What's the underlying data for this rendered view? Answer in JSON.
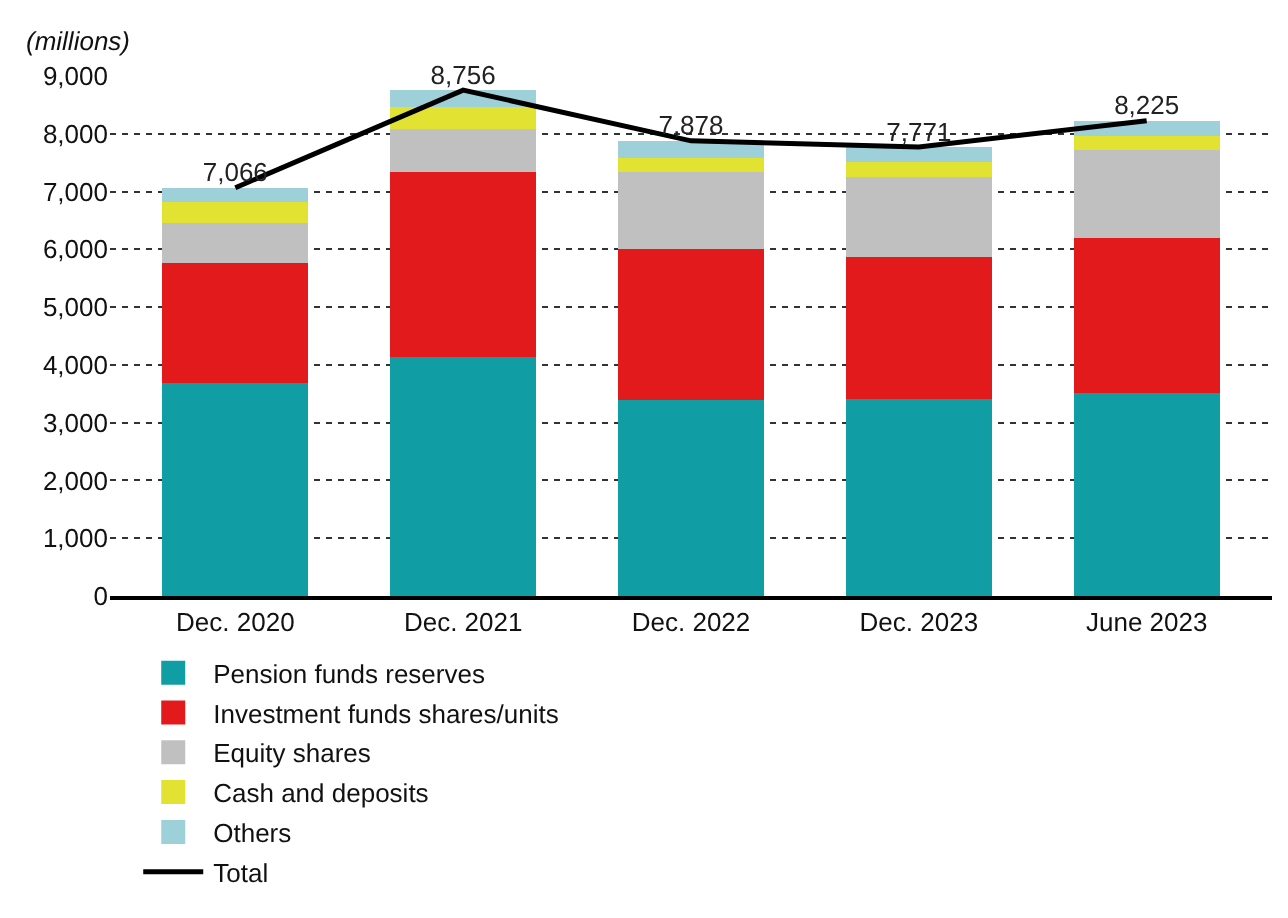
{
  "chart_data": {
    "type": "bar",
    "stacked": true,
    "ylabel": "(millions)",
    "categories": [
      "Dec. 2020",
      "Dec. 2021",
      "Dec. 2022",
      "Dec. 2023",
      "June 2023"
    ],
    "series": [
      {
        "name": "Pension funds reserves",
        "color": "#109da4",
        "values": [
          3690,
          4140,
          3390,
          3410,
          3510
        ]
      },
      {
        "name": "Investment funds shares/units",
        "color": "#e31a1c",
        "values": [
          2080,
          3200,
          2620,
          2450,
          2690
        ]
      },
      {
        "name": "Equity shares",
        "color": "#c0c0c0",
        "values": [
          680,
          750,
          1320,
          1400,
          1520
        ]
      },
      {
        "name": "Cash and deposits",
        "color": "#e2e232",
        "values": [
          370,
          370,
          250,
          250,
          250
        ]
      },
      {
        "name": "Others",
        "color": "#9ed0da",
        "values": [
          250,
          300,
          300,
          260,
          250
        ]
      },
      {
        "name": "Total",
        "type": "line",
        "color": "#000000",
        "values": [
          7066,
          8756,
          7878,
          7771,
          8225
        ],
        "value_labels": [
          "7,066",
          "8,756",
          "7,878",
          "7,771",
          "8,225"
        ]
      }
    ],
    "ylim": [
      0,
      9000
    ],
    "yticks": [
      {
        "value": 0,
        "label": "0"
      },
      {
        "value": 1000,
        "label": "1,000"
      },
      {
        "value": 2000,
        "label": "2,000"
      },
      {
        "value": 3000,
        "label": "3,000"
      },
      {
        "value": 4000,
        "label": "4,000"
      },
      {
        "value": 5000,
        "label": "5,000"
      },
      {
        "value": 6000,
        "label": "6,000"
      },
      {
        "value": 7000,
        "label": "7,000"
      },
      {
        "value": 8000,
        "label": "8,000"
      },
      {
        "value": 9000,
        "label": "9,000"
      }
    ],
    "grid": "y",
    "legend": "bottom",
    "marker": "none",
    "line_style": "solid"
  }
}
